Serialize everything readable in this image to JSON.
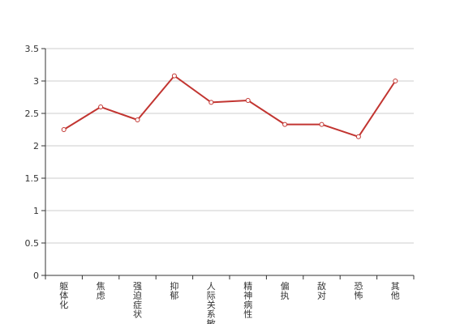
{
  "chart_data": {
    "type": "line",
    "title": "",
    "xlabel": "",
    "ylabel": "",
    "categories": [
      "躯体化",
      "焦虑",
      "强迫症状",
      "抑郁",
      "人际关系敏感",
      "精神病性",
      "偏执",
      "敌对",
      "恐怖",
      "其他"
    ],
    "series": [
      {
        "name": "",
        "values": [
          2.25,
          2.6,
          2.4,
          3.08,
          2.67,
          2.7,
          2.33,
          2.33,
          2.14,
          3.0
        ]
      }
    ],
    "ylim": [
      0,
      3.5
    ],
    "yticks": [
      0,
      0.5,
      1,
      1.5,
      2,
      2.5,
      3,
      3.5
    ],
    "ytick_labels": [
      "0",
      "0.5",
      "1",
      "1.5",
      "2",
      "2.5",
      "3",
      "3.5"
    ],
    "grid": true,
    "legend": "none",
    "colors": {
      "line": "#c23531",
      "grid": "#cccccc",
      "axis": "#333333"
    }
  }
}
